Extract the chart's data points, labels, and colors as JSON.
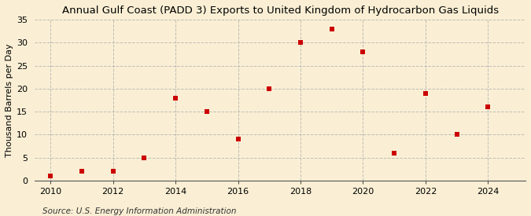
{
  "title": "Annual Gulf Coast (PADD 3) Exports to United Kingdom of Hydrocarbon Gas Liquids",
  "ylabel": "Thousand Barrels per Day",
  "source": "Source: U.S. Energy Information Administration",
  "background_color": "#faefd4",
  "years": [
    2010,
    2011,
    2012,
    2013,
    2014,
    2015,
    2016,
    2017,
    2018,
    2019,
    2020,
    2021,
    2022,
    2023,
    2024
  ],
  "values": [
    1,
    2,
    2,
    5,
    18,
    15,
    9,
    20,
    30,
    33,
    28,
    6,
    19,
    10,
    16
  ],
  "marker_color": "#cc0000",
  "marker": "s",
  "marker_size": 4,
  "xlim": [
    2009.5,
    2025.2
  ],
  "ylim": [
    0,
    35
  ],
  "yticks": [
    0,
    5,
    10,
    15,
    20,
    25,
    30,
    35
  ],
  "xticks": [
    2010,
    2012,
    2014,
    2016,
    2018,
    2020,
    2022,
    2024
  ],
  "grid_color": "#b0b0b0",
  "grid_style": "--",
  "grid_alpha": 0.8,
  "title_fontsize": 9.5,
  "label_fontsize": 8,
  "tick_fontsize": 8,
  "source_fontsize": 7.5
}
